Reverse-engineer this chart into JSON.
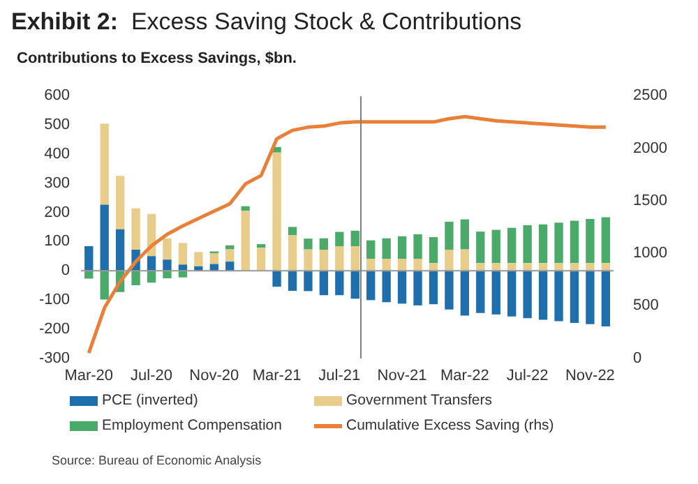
{
  "chart_data": {
    "type": "bar",
    "title": "Exhibit 2:  Excess Saving Stock & Contributions",
    "subtitle": "Contributions to Excess Savings, $bn.",
    "categories": [
      "Mar-20",
      null,
      null,
      null,
      "Jul-20",
      null,
      null,
      null,
      "Nov-20",
      null,
      null,
      null,
      "Mar-21",
      null,
      null,
      null,
      "Jul-21",
      null,
      null,
      null,
      "Nov-21",
      null,
      null,
      null,
      "Mar-22",
      null,
      null,
      null,
      "Jul-22",
      null,
      null,
      null,
      "Nov-22",
      null
    ],
    "stacked": true,
    "series": [
      {
        "name": "PCE (inverted)",
        "color": "#1f6fad",
        "values": [
          84,
          226,
          142,
          72,
          50,
          38,
          21,
          15,
          23,
          31,
          null,
          null,
          -55,
          -69,
          -70,
          -84,
          -84,
          -96,
          -101,
          -108,
          -113,
          -119,
          -115,
          -133,
          -154,
          -145,
          -150,
          -157,
          -163,
          -168,
          -173,
          -179,
          -183,
          -191
        ]
      },
      {
        "name": "Government Transfers",
        "color": "#e8cd8a",
        "values": [
          0,
          278,
          183,
          142,
          144,
          73,
          74,
          49,
          37,
          42,
          205,
          79,
          405,
          122,
          73,
          72,
          84,
          84,
          41,
          41,
          41,
          41,
          26,
          72,
          73,
          26,
          26,
          26,
          26,
          26,
          26,
          26,
          26,
          26
        ]
      },
      {
        "name": "Employment Compensation",
        "color": "#4aaa6a",
        "values": [
          -27,
          -99,
          -73,
          -50,
          -41,
          -26,
          -23,
          0,
          6,
          14,
          16,
          12,
          19,
          28,
          37,
          39,
          49,
          53,
          63,
          70,
          77,
          84,
          89,
          96,
          103,
          108,
          114,
          121,
          130,
          133,
          139,
          145,
          151,
          157
        ]
      },
      {
        "name": "Cumulative Excess Saving (rhs)",
        "type": "line",
        "axis": "y2",
        "color": "#e8803a",
        "values": [
          50,
          480,
          730,
          920,
          1070,
          1180,
          1260,
          1330,
          1400,
          1470,
          1660,
          1740,
          2090,
          2170,
          2200,
          2210,
          2240,
          2250,
          2250,
          2250,
          2250,
          2250,
          2250,
          2280,
          2300,
          2280,
          2260,
          2250,
          2240,
          2230,
          2220,
          2210,
          2200,
          2200
        ]
      }
    ],
    "ylim": [
      -300,
      600
    ],
    "yticks": [
      -300,
      -200,
      -100,
      0,
      100,
      200,
      300,
      400,
      500,
      600
    ],
    "y2lim": [
      0,
      2500
    ],
    "y2ticks": [
      0,
      500,
      1000,
      1500,
      2000,
      2500
    ],
    "ref_lines": [
      {
        "axis": "y",
        "value": 0,
        "color": "#999999"
      }
    ],
    "grid": false,
    "marker": "none",
    "legend": "bottom",
    "annotations": [
      "Source: Bureau of Economic Analysis"
    ]
  }
}
